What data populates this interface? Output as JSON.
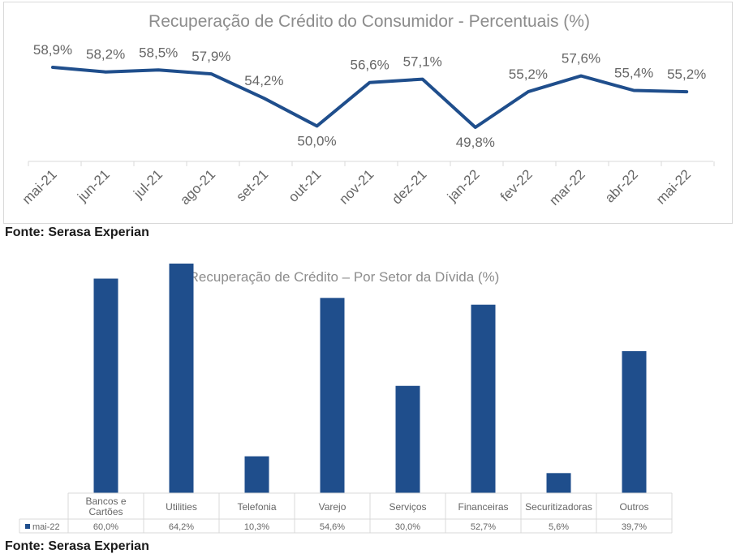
{
  "colors": {
    "series": "#1f4e8c",
    "title": "#8c8c8c",
    "label": "#666666",
    "axis": "#d9d9d9"
  },
  "chart_data": [
    {
      "type": "line",
      "title": "Recuperação de Crédito do Consumidor - Percentuais (%)",
      "categories": [
        "mai-21",
        "jun-21",
        "jul-21",
        "ago-21",
        "set-21",
        "out-21",
        "nov-21",
        "dez-21",
        "jan-22",
        "fev-22",
        "mar-22",
        "abr-22",
        "mai-22"
      ],
      "values": [
        58.9,
        58.2,
        58.5,
        57.9,
        54.2,
        50.0,
        56.6,
        57.1,
        49.8,
        55.2,
        57.6,
        55.4,
        55.2
      ],
      "labels": [
        "58,9%",
        "58,2%",
        "58,5%",
        "57,9%",
        "54,2%",
        "50,0%",
        "56,6%",
        "57,1%",
        "49,8%",
        "55,2%",
        "57,6%",
        "55,4%",
        "55,2%"
      ],
      "grid": false,
      "legend": "none"
    },
    {
      "type": "bar",
      "title": "Recuperação de Crédito – Por Setor da Dívida (%)",
      "categories": [
        "Bancos e Cartões",
        "Utilities",
        "Telefonia",
        "Varejo",
        "Serviços",
        "Financeiras",
        "Securitizadoras",
        "Outros"
      ],
      "series": [
        {
          "name": "mai-22",
          "values": [
            60.0,
            64.2,
            10.3,
            54.6,
            30.0,
            52.7,
            5.6,
            39.7
          ],
          "labels": [
            "60,0%",
            "64,2%",
            "10,3%",
            "54,6%",
            "30,0%",
            "52,7%",
            "5,6%",
            "39,7%"
          ]
        }
      ],
      "grid": false,
      "legend": "data-table"
    }
  ],
  "sources": [
    "Fonte: Serasa Experian",
    "Fonte: Serasa Experian"
  ]
}
